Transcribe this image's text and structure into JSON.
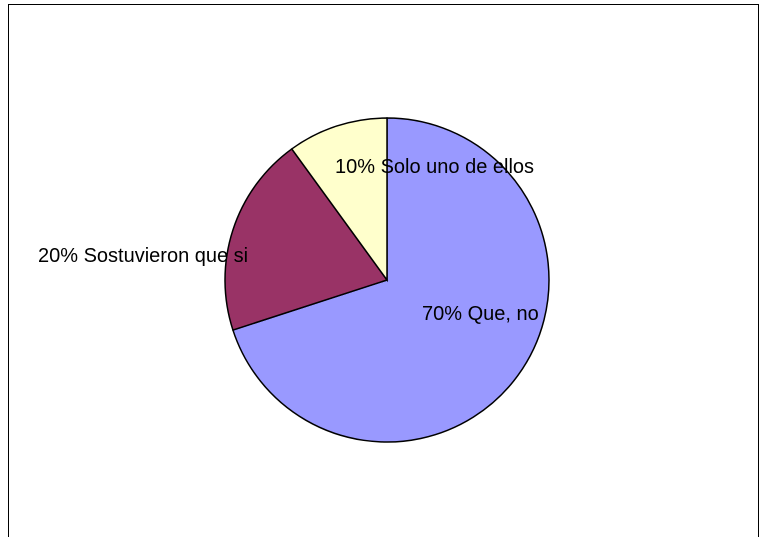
{
  "chart_data": {
    "type": "pie",
    "title": "",
    "start_angle": "12 o'clock",
    "direction": "clockwise",
    "legend": "none",
    "slices": [
      {
        "label": "70% Que, no",
        "value": 70,
        "color": "#9999ff"
      },
      {
        "label": "20% Sostuvieron que si",
        "value": 20,
        "color": "#993366"
      },
      {
        "label": "10% Solo uno de ellos",
        "value": 10,
        "color": "#ffffcc"
      }
    ]
  }
}
